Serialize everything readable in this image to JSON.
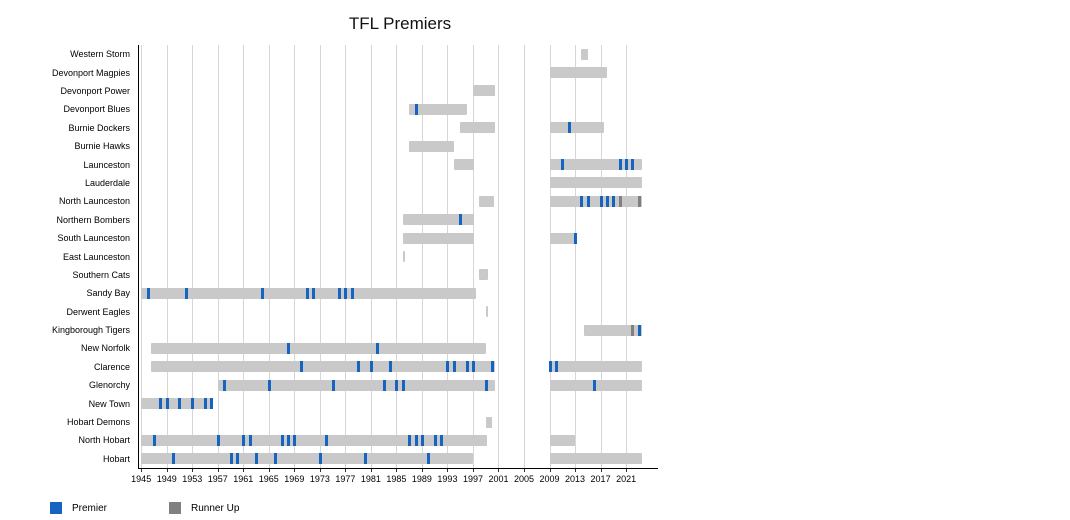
{
  "title": "TFL Premiers",
  "legend": {
    "premier_label": "Premier",
    "runner_up_label": "Runner Up",
    "premier_color": "#1565c0",
    "runner_up_color": "#808080"
  },
  "colors": {
    "activity_bar": "#c9c9c9",
    "gridline": "#d6d6d6",
    "axis": "#000000"
  },
  "chart_data": {
    "type": "gantt-timeline",
    "title": "TFL Premiers",
    "x_axis": {
      "ticks": [
        1945,
        1949,
        1953,
        1957,
        1961,
        1965,
        1969,
        1973,
        1977,
        1981,
        1985,
        1989,
        1993,
        1997,
        2001,
        2005,
        2009,
        2013,
        2017,
        2021
      ],
      "min": 1944.5,
      "max": 2026
    },
    "legend_position": "bottom-left",
    "grid": true,
    "teams": [
      {
        "name": "Western Storm",
        "spans": [
          [
            2014,
            2015
          ]
        ],
        "premier_years": [],
        "runner_up_years": []
      },
      {
        "name": "Devonport Magpies",
        "spans": [
          [
            2009,
            2018
          ]
        ],
        "premier_years": [],
        "runner_up_years": []
      },
      {
        "name": "Devonport Power",
        "spans": [
          [
            1997,
            2000.5
          ]
        ],
        "premier_years": [],
        "runner_up_years": []
      },
      {
        "name": "Devonport Blues",
        "spans": [
          [
            1987,
            1996
          ]
        ],
        "premier_years": [
          1988
        ],
        "runner_up_years": []
      },
      {
        "name": "Burnie Dockers",
        "spans": [
          [
            1995,
            2000.5
          ],
          [
            2009,
            2017.5
          ]
        ],
        "premier_years": [
          2012
        ],
        "runner_up_years": []
      },
      {
        "name": "Burnie Hawks",
        "spans": [
          [
            1987,
            1994
          ]
        ],
        "premier_years": [],
        "runner_up_years": []
      },
      {
        "name": "Launceston",
        "spans": [
          [
            1994,
            1997.2
          ],
          [
            2009,
            2023.5
          ]
        ],
        "premier_years": [
          2011,
          2020,
          2021,
          2022
        ],
        "runner_up_years": []
      },
      {
        "name": "Lauderdale",
        "spans": [
          [
            2009,
            2023.5
          ]
        ],
        "premier_years": [],
        "runner_up_years": []
      },
      {
        "name": "North Launceston",
        "spans": [
          [
            1998,
            2000.3
          ],
          [
            2009,
            2023.5
          ]
        ],
        "premier_years": [
          2014,
          2015,
          2017,
          2018,
          2019
        ],
        "runner_up_years": [
          2020,
          2023
        ]
      },
      {
        "name": "Northern Bombers",
        "spans": [
          [
            1986,
            1997.2
          ]
        ],
        "premier_years": [
          1995
        ],
        "runner_up_years": []
      },
      {
        "name": "South Launceston",
        "spans": [
          [
            1986,
            1997.2
          ],
          [
            2009,
            2013.2
          ]
        ],
        "premier_years": [
          2013
        ],
        "runner_up_years": []
      },
      {
        "name": "East Launceston",
        "spans": [
          [
            1986,
            1986.4
          ]
        ],
        "premier_years": [],
        "runner_up_years": []
      },
      {
        "name": "Southern Cats",
        "spans": [
          [
            1998,
            1999.3
          ]
        ],
        "premier_years": [],
        "runner_up_years": []
      },
      {
        "name": "Sandy Bay",
        "spans": [
          [
            1945,
            1997.5
          ]
        ],
        "premier_years": [
          1946,
          1952,
          1964,
          1971,
          1972,
          1976,
          1977,
          1978
        ],
        "runner_up_years": []
      },
      {
        "name": "Derwent Eagles",
        "spans": [
          [
            1999,
            1999.4
          ]
        ],
        "premier_years": [],
        "runner_up_years": []
      },
      {
        "name": "Kingborough Tigers",
        "spans": [
          [
            2014.4,
            2023.5
          ]
        ],
        "premier_years": [
          2023
        ],
        "runner_up_years": [
          2022
        ]
      },
      {
        "name": "New Norfolk",
        "spans": [
          [
            1946.5,
            1999
          ]
        ],
        "premier_years": [
          1968,
          1982
        ],
        "runner_up_years": []
      },
      {
        "name": "Clarence",
        "spans": [
          [
            1946.5,
            2000.5
          ],
          [
            2009,
            2023.5
          ]
        ],
        "premier_years": [
          1970,
          1979,
          1981,
          1984,
          1993,
          1994,
          1996,
          1997,
          2000,
          2009,
          2010
        ],
        "runner_up_years": []
      },
      {
        "name": "Glenorchy",
        "spans": [
          [
            1957,
            2000.5
          ],
          [
            2009,
            2023.5
          ]
        ],
        "premier_years": [
          1958,
          1965,
          1975,
          1983,
          1985,
          1986,
          1999,
          2016
        ],
        "runner_up_years": []
      },
      {
        "name": "New Town",
        "spans": [
          [
            1945,
            1956
          ]
        ],
        "premier_years": [
          1948,
          1949,
          1951,
          1953,
          1955,
          1956
        ],
        "runner_up_years": []
      },
      {
        "name": "Hobart Demons",
        "spans": [
          [
            1999,
            2000
          ]
        ],
        "premier_years": [],
        "runner_up_years": []
      },
      {
        "name": "North Hobart",
        "spans": [
          [
            1945,
            1999.2
          ],
          [
            2009,
            2013
          ]
        ],
        "premier_years": [
          1947,
          1957,
          1961,
          1962,
          1967,
          1968,
          1969,
          1974,
          1987,
          1988,
          1989,
          1991,
          1992
        ],
        "runner_up_years": []
      },
      {
        "name": "Hobart",
        "spans": [
          [
            1945,
            1997
          ],
          [
            2009,
            2023.5
          ]
        ],
        "premier_years": [
          1950,
          1959,
          1960,
          1963,
          1966,
          1973,
          1980,
          1990
        ],
        "runner_up_years": []
      }
    ]
  }
}
